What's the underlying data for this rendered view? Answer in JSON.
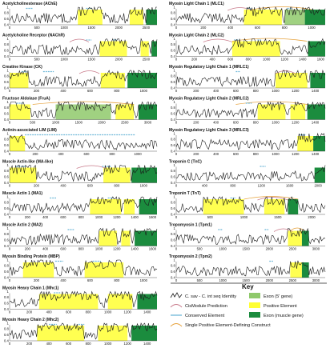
{
  "colors": {
    "trace": "#1a1a1a",
    "positive": "#ffff33",
    "exon_5prime": "#8fc96b",
    "exon_muscle": "#1b8c3e",
    "cismodule": "#c87a8a",
    "conserved": "#6fb8d8",
    "single_construct": "#e6a23c"
  },
  "y_ticks": [
    "1",
    "0.8",
    "0.6",
    "0.4"
  ],
  "panels_left": [
    {
      "title": "Acetylcholinesterase (AChE)",
      "xticks": [
        "0",
        "500",
        "1000",
        "1500",
        "2000",
        "2500"
      ],
      "xmax": 2700,
      "positive": [
        [
          1250,
          1700
        ],
        [
          2200,
          2450
        ]
      ],
      "exon5": [],
      "exonM": [
        [
          2500,
          2700
        ]
      ],
      "conserved": [
        [
          300,
          420
        ],
        [
          1400,
          1500
        ]
      ],
      "cis": [],
      "single": []
    },
    {
      "title": "Acetylcholine Receptor (NAChR)",
      "xticks": [
        "0",
        "500",
        "1000",
        "1500",
        "2000",
        "2500"
      ],
      "xmax": 2700,
      "positive": [
        [
          1650,
          2150
        ],
        [
          2400,
          2550
        ]
      ],
      "exon5": [],
      "exonM": [
        [
          2600,
          2700
        ]
      ],
      "conserved": [
        [
          1400,
          1500
        ],
        [
          1900,
          1960
        ]
      ],
      "cis": [
        [
          1100,
          1450
        ]
      ],
      "single": []
    },
    {
      "title": "Creatine Kinase (CK)",
      "xticks": [
        "0",
        "200",
        "400",
        "600",
        "800",
        "1000"
      ],
      "xmax": 1100,
      "positive": [
        [
          0,
          140
        ],
        [
          680,
          860
        ]
      ],
      "exon5": [],
      "exonM": [
        [
          880,
          1100
        ]
      ],
      "conserved": [
        [
          90,
          130
        ],
        [
          250,
          330
        ]
      ],
      "cis": [
        [
          520,
          670
        ]
      ],
      "single": []
    },
    {
      "title": "Fructose Aldolase (FruA)",
      "xticks": [
        "0",
        "500",
        "1000",
        "1500",
        "2000",
        "2500",
        "3000"
      ],
      "xmax": 3200,
      "positive": [
        [
          0,
          450
        ],
        [
          2300,
          2700
        ]
      ],
      "exon5": [
        [
          1000,
          2200
        ]
      ],
      "exonM": [
        [
          2800,
          3200
        ]
      ],
      "conserved": [
        [
          150,
          300
        ]
      ],
      "cis": [],
      "single": [
        [
          500,
          2700
        ]
      ]
    },
    {
      "title": "Actinin-associated LIM (LIM)",
      "xticks": [
        "0",
        "200",
        "400",
        "600",
        "800",
        "1000"
      ],
      "xmax": 1150,
      "positive": [
        [
          0,
          120
        ]
      ],
      "exon5": [],
      "exonM": [],
      "conserved": [
        [
          120,
          980
        ]
      ],
      "cis": [],
      "single": []
    },
    {
      "title": "Muscle Actin-like (MA-like)",
      "xticks": [
        "0",
        "200",
        "400",
        "600",
        "800",
        "1000"
      ],
      "xmax": 1100,
      "positive": [
        [
          0,
          200
        ],
        [
          700,
          900
        ]
      ],
      "exon5": [],
      "exonM": [
        [
          910,
          1100
        ]
      ],
      "conserved": [
        [
          50,
          120
        ],
        [
          690,
          760
        ]
      ],
      "cis": [
        [
          500,
          720
        ]
      ],
      "single": []
    },
    {
      "title": "Muscle Actin 1 (MA1)",
      "xticks": [
        "0",
        "200",
        "400",
        "600",
        "800",
        "1000",
        "1200",
        "1400",
        "1600"
      ],
      "xmax": 1650,
      "positive": [
        [
          900,
          1250
        ],
        [
          1280,
          1400
        ]
      ],
      "exon5": [],
      "exonM": [
        [
          1450,
          1650
        ]
      ],
      "conserved": [
        [
          450,
          520
        ],
        [
          1100,
          1160
        ]
      ],
      "cis": [],
      "single": []
    },
    {
      "title": "Muscle Actin 2 (MA2)",
      "xticks": [
        "0",
        "200",
        "400",
        "600",
        "800",
        "1000",
        "1200",
        "1400",
        "1600"
      ],
      "xmax": 1650,
      "positive": [
        [
          1000,
          1200
        ],
        [
          1250,
          1350
        ]
      ],
      "exon5": [],
      "exonM": [
        [
          1400,
          1650
        ]
      ],
      "conserved": [
        [
          650,
          720
        ]
      ],
      "cis": [],
      "single": []
    },
    {
      "title": "Myosin Binding Protein (MBP)",
      "xticks": [
        "0",
        "200",
        "400",
        "600",
        "800",
        "1000"
      ],
      "xmax": 1100,
      "positive": [
        [
          100,
          330
        ],
        [
          560,
          850
        ]
      ],
      "exon5": [],
      "exonM": [],
      "conserved": [
        [
          340,
          400
        ],
        [
          620,
          680
        ]
      ],
      "cis": [],
      "single": []
    },
    {
      "title": "Myosin Heavy Chain 1 (Mhc1)",
      "xticks": [
        "0",
        "200",
        "400",
        "600",
        "800",
        "1000",
        "1200",
        "1400"
      ],
      "xmax": 1500,
      "positive": [
        [
          300,
          900
        ],
        [
          1000,
          1250
        ]
      ],
      "exon5": [],
      "exonM": [
        [
          1300,
          1500
        ]
      ],
      "conserved": [
        [
          450,
          520
        ]
      ],
      "cis": [],
      "single": []
    },
    {
      "title": "Myosin Heavy Chain 2 (Mhc2)",
      "xticks": [
        "0",
        "200",
        "400",
        "600",
        "800",
        "1000",
        "1200",
        "1400"
      ],
      "xmax": 1500,
      "positive": [
        [
          280,
          760
        ],
        [
          900,
          1200
        ]
      ],
      "exon5": [],
      "exonM": [
        [
          1240,
          1500
        ]
      ],
      "conserved": [
        [
          400,
          480
        ],
        [
          700,
          760
        ]
      ],
      "cis": [],
      "single": []
    }
  ],
  "panels_right": [
    {
      "title": "Myosin Light Chain 1 (MLC1)",
      "xticks": [
        "0",
        "200",
        "400",
        "600",
        "800",
        "1000"
      ],
      "xmax": 1100,
      "positive": [
        [
          500,
          780
        ]
      ],
      "exon5": [
        [
          800,
          950
        ]
      ],
      "exonM": [
        [
          950,
          1100
        ]
      ],
      "conserved": [
        [
          520,
          560
        ],
        [
          820,
          850
        ]
      ],
      "cis": [
        [
          380,
          560
        ]
      ],
      "single": [
        [
          560,
          1000
        ]
      ]
    },
    {
      "title": "Myosin Light Chain 2 (MLC2)",
      "xticks": [
        "0",
        "200",
        "400",
        "600",
        "800",
        "1000",
        "1200",
        "1400",
        "1600"
      ],
      "xmax": 1650,
      "positive": [
        [
          620,
          1150
        ]
      ],
      "exon5": [],
      "exonM": [
        [
          1460,
          1650
        ]
      ],
      "conserved": [
        [
          640,
          700
        ],
        [
          900,
          940
        ]
      ],
      "cis": [
        [
          300,
          620
        ]
      ],
      "single": [
        [
          620,
          1450
        ]
      ]
    },
    {
      "title": "Myosin Regulatory Light Chain 1 (MRLC1)",
      "xticks": [
        "0",
        "200",
        "400",
        "600",
        "800",
        "1000",
        "1200",
        "1400"
      ],
      "xmax": 1500,
      "positive": [
        [
          1000,
          1320
        ]
      ],
      "exon5": [],
      "exonM": [
        [
          1350,
          1500
        ]
      ],
      "conserved": [
        [
          600,
          640
        ]
      ],
      "cis": [
        [
          1000,
          1200
        ]
      ],
      "single": []
    },
    {
      "title": "Myosin Regulatory Light Chain 2 (MRLC2)",
      "xticks": [
        "0",
        "200",
        "400",
        "600",
        "800",
        "1000",
        "1200",
        "1400"
      ],
      "xmax": 1500,
      "positive": [
        [
          820,
          1100
        ],
        [
          1150,
          1300
        ]
      ],
      "exon5": [],
      "exonM": [
        [
          1320,
          1500
        ]
      ],
      "conserved": [
        [
          700,
          760
        ]
      ],
      "cis": [],
      "single": [
        [
          600,
          1320
        ]
      ]
    },
    {
      "title": "Myosin Regulatory Light Chain 3 (MRLC3)",
      "xticks": [
        "0",
        "200",
        "400",
        "600",
        "800",
        "1000",
        "1200",
        "1400"
      ],
      "xmax": 1500,
      "positive": [
        [
          1220,
          1380
        ]
      ],
      "exon5": [],
      "exonM": [
        [
          1380,
          1500
        ]
      ],
      "conserved": [
        [
          1240,
          1300
        ]
      ],
      "cis": [],
      "single": []
    },
    {
      "title": "Troponin C (TnC)",
      "xticks": [
        "0",
        "400",
        "800",
        "1200",
        "1600",
        "2000"
      ],
      "xmax": 2100,
      "positive": [],
      "exon5": [],
      "exonM": [
        [
          1950,
          2100
        ]
      ],
      "conserved": [
        [
          1180,
          1260
        ]
      ],
      "cis": [],
      "single": []
    },
    {
      "title": "Troponin T (TnT)",
      "xticks": [
        "0",
        "500",
        "1000",
        "1500",
        "2000"
      ],
      "xmax": 2200,
      "positive": [
        [
          400,
          1000
        ],
        [
          1300,
          1600
        ]
      ],
      "exon5": [],
      "exonM": [
        [
          1650,
          1800
        ]
      ],
      "conserved": [
        [
          800,
          880
        ]
      ],
      "cis": [
        [
          1200,
          1650
        ]
      ],
      "single": [
        [
          1000,
          1800
        ]
      ]
    },
    {
      "title": "Tropomyosin 1 (Tpm1)",
      "xticks": [
        "0",
        "500",
        "1000",
        "1500",
        "2000",
        "2500",
        "3000"
      ],
      "xmax": 3200,
      "positive": [
        [
          2400,
          2700
        ]
      ],
      "exon5": [],
      "exonM": [
        [
          2700,
          2850
        ]
      ],
      "conserved": [
        [
          900,
          1000
        ],
        [
          1900,
          1980
        ]
      ],
      "cis": [
        [
          2100,
          2500
        ]
      ],
      "single": [
        [
          2450,
          2750
        ]
      ]
    },
    {
      "title": "Tropomyosin 2 (Tpm2)",
      "xticks": [
        "0",
        "500",
        "1000",
        "1500",
        "2000",
        "2500",
        "3000"
      ],
      "xmax": 3200,
      "positive": [
        [
          2450,
          2700
        ]
      ],
      "exon5": [],
      "exonM": [
        [
          2700,
          2850
        ]
      ],
      "conserved": [
        [
          2000,
          2080
        ]
      ],
      "cis": [],
      "single": []
    }
  ],
  "key": {
    "title": "Key",
    "items": [
      {
        "label": "C. sav - C. int seq Identity",
        "kind": "trace"
      },
      {
        "label": "Exon (5' gene)",
        "kind": "exon5"
      },
      {
        "label": "CisModule Prediction",
        "kind": "cis"
      },
      {
        "label": "Positive Element",
        "kind": "positive"
      },
      {
        "label": "Conserved Element",
        "kind": "conserved"
      },
      {
        "label": "Exon (muscle gene)",
        "kind": "exonM"
      },
      {
        "label": "Single Positive Element-Defining Construct",
        "kind": "single"
      }
    ]
  }
}
